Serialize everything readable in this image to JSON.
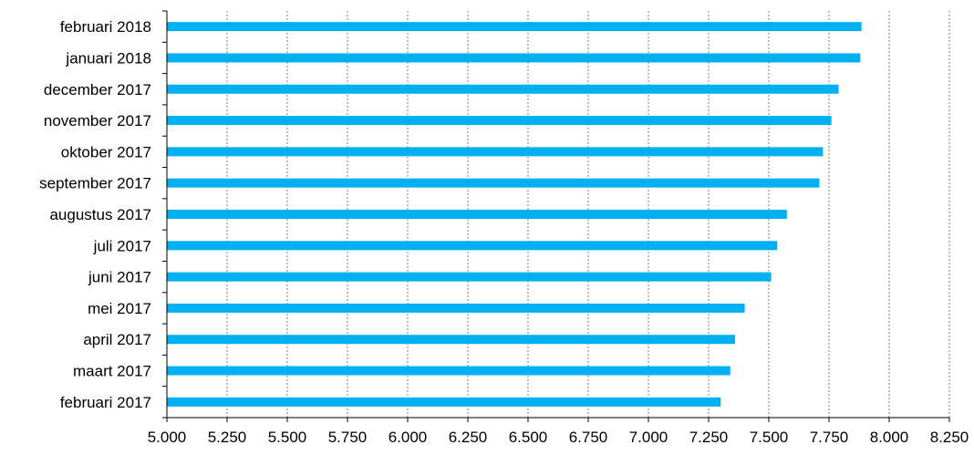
{
  "chart_data": {
    "type": "bar",
    "orientation": "horizontal",
    "categories": [
      "februari 2018",
      "januari 2018",
      "december 2017",
      "november 2017",
      "oktober 2017",
      "september 2017",
      "augustus 2017",
      "juli 2017",
      "juni 2017",
      "mei 2017",
      "april 2017",
      "maart 2017",
      "februari 2017"
    ],
    "values": [
      7.885,
      7.88,
      7.79,
      7.76,
      7.725,
      7.71,
      7.575,
      7.535,
      7.51,
      7.4,
      7.36,
      7.34,
      7.3
    ],
    "title": "",
    "xlabel": "",
    "ylabel": "",
    "xlim": [
      5.0,
      8.25
    ],
    "x_ticks": [
      5.0,
      5.25,
      5.5,
      5.75,
      6.0,
      6.25,
      6.5,
      6.75,
      7.0,
      7.25,
      7.5,
      7.75,
      8.0,
      8.25
    ],
    "x_tick_labels": [
      "5.000",
      "5.250",
      "5.500",
      "5.750",
      "6.000",
      "6.250",
      "6.500",
      "6.750",
      "7.000",
      "7.250",
      "7.500",
      "7.750",
      "8.000",
      "8.250"
    ],
    "grid": "vertical dotted",
    "legend": "none",
    "bar_color": "#00b0f0",
    "grid_color": "#808080",
    "axis_color": "#000000"
  }
}
